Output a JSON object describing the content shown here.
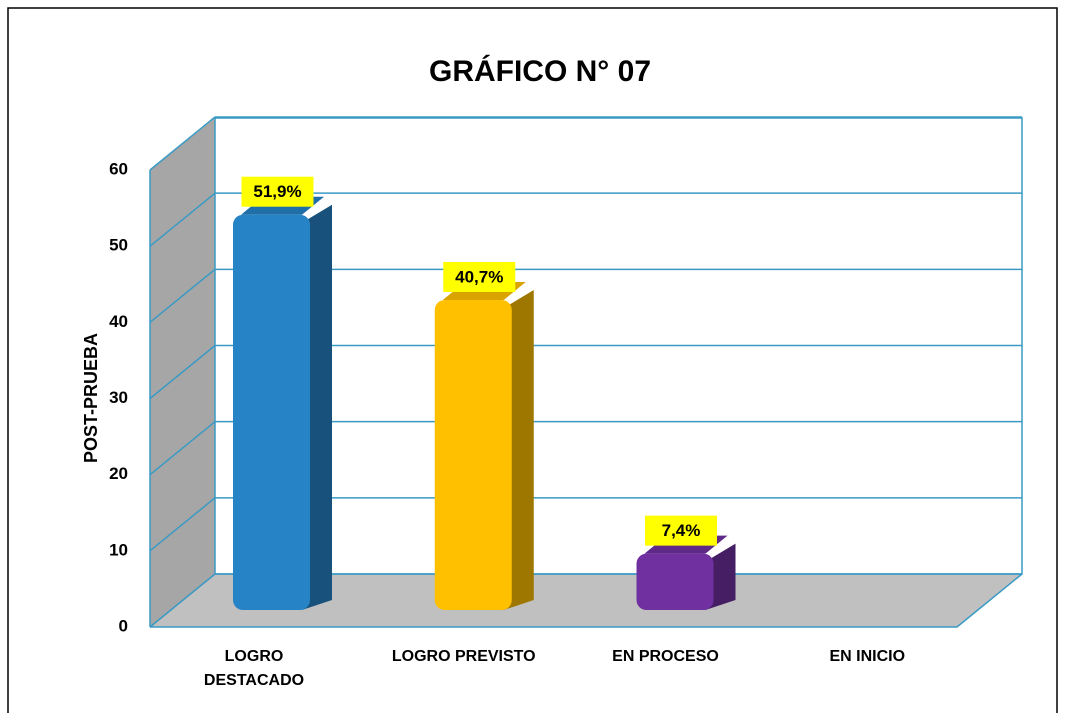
{
  "chart_data": {
    "type": "bar3d",
    "title": "GRÁFICO N° 07",
    "y_label": "POST-PRUEBA",
    "categories": [
      "LOGRO DESTACADO",
      "LOGRO PREVISTO",
      "EN PROCESO",
      "EN  INICIO"
    ],
    "values": [
      51.9,
      40.7,
      7.4,
      0
    ],
    "value_labels": [
      "51,9%",
      "40,7%",
      "7,4%",
      null
    ],
    "colors": [
      "#2683c6",
      "#ffc000",
      "#7030a0",
      "#7f7f7f"
    ],
    "ylim": [
      0,
      60
    ],
    "yticks": [
      0,
      10,
      20,
      30,
      40,
      50,
      60
    ],
    "grid": true
  }
}
